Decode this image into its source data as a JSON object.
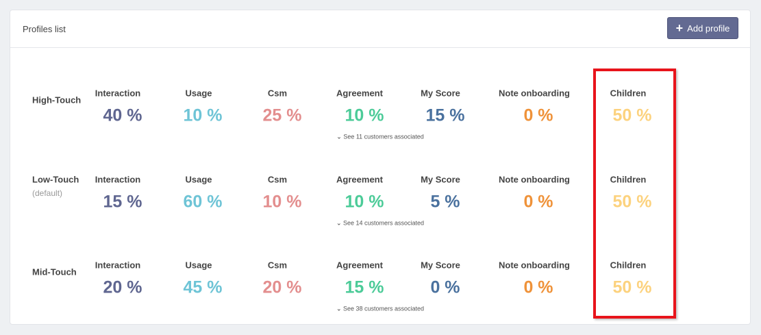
{
  "header": {
    "title": "Profiles list",
    "button": "Add profile"
  },
  "profiles": [
    {
      "name": "High-Touch",
      "metrics": [
        {
          "label": "Interaction",
          "value": "40 %"
        },
        {
          "label": "Usage",
          "value": "10 %"
        },
        {
          "label": "Csm",
          "value": "25 %"
        },
        {
          "label": "Agreement",
          "value": "10 %"
        },
        {
          "label": "My Score",
          "value": "15 %"
        },
        {
          "label": "Note onboarding",
          "value": "0 %"
        },
        {
          "label": "Children",
          "value": "50 %"
        }
      ],
      "link": "See 11 customers associated"
    },
    {
      "name": "Low-Touch",
      "note": "(default)",
      "metrics": [
        {
          "label": "Interaction",
          "value": "15 %"
        },
        {
          "label": "Usage",
          "value": "60 %"
        },
        {
          "label": "Csm",
          "value": "10 %"
        },
        {
          "label": "Agreement",
          "value": "10 %"
        },
        {
          "label": "My Score",
          "value": "5 %"
        },
        {
          "label": "Note onboarding",
          "value": "0 %"
        },
        {
          "label": "Children",
          "value": "50 %"
        }
      ],
      "link": "See 14 customers associated"
    },
    {
      "name": "Mid-Touch",
      "metrics": [
        {
          "label": "Interaction",
          "value": "20 %"
        },
        {
          "label": "Usage",
          "value": "45 %"
        },
        {
          "label": "Csm",
          "value": "20 %"
        },
        {
          "label": "Agreement",
          "value": "15 %"
        },
        {
          "label": "My Score",
          "value": "0 %"
        },
        {
          "label": "Note onboarding",
          "value": "0 %"
        },
        {
          "label": "Children",
          "value": "50 %"
        }
      ],
      "link": "See 38 customers associated"
    }
  ]
}
